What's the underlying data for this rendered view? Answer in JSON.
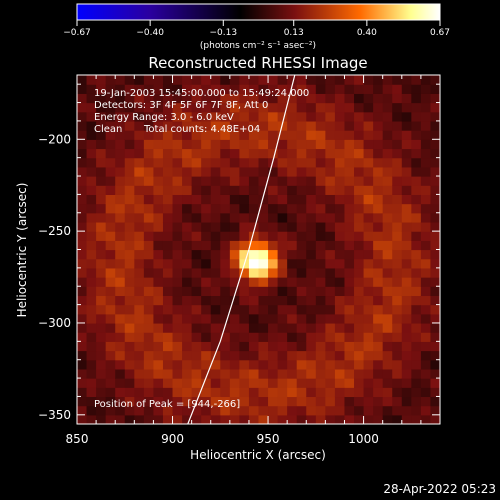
{
  "chart_data": {
    "type": "heatmap",
    "title": "Reconstructed RHESSI Image",
    "xlabel": "Heliocentric X (arcsec)",
    "ylabel": "Heliocentric Y (arcsec)",
    "xlim": [
      850,
      1040
    ],
    "ylim": [
      -355,
      -165
    ],
    "x_ticks": [
      850,
      900,
      950,
      1000
    ],
    "y_ticks": [
      -200,
      -250,
      -300,
      -350
    ],
    "colorbar": {
      "unit_label": "(photons cm⁻² s⁻¹ asec⁻²)",
      "range": [
        -0.67,
        0.67
      ],
      "tick_labels": [
        "−0.67",
        "−0.40",
        "−0.13",
        "0.13",
        "0.40",
        "0.67"
      ],
      "colormap": [
        "#0000ff",
        "#2a00a0",
        "#000000",
        "#7a1010",
        "#ff6a00",
        "#ffff90",
        "#ffffff"
      ]
    },
    "annotations": {
      "time_range": "19-Jan-2003 15:45:00.000 to 15:49:24.000",
      "detectors": "Detectors: 3F 4F 5F 6F 7F 8F, Att 0",
      "energy_range": "Energy Range: 3.0 - 6.0 keV",
      "clean": "Clean",
      "total_counts": "Total counts: 4.48E+04",
      "peak_position": "Position of Peak = [944,-266]"
    },
    "peak": {
      "x": 944,
      "y": -266,
      "value": 0.67
    },
    "ring": {
      "center_x": 944,
      "center_y": -266,
      "radius_arcsec": 72,
      "level": 0.15
    },
    "limb": [
      [
        908,
        -355
      ],
      [
        925,
        -310
      ],
      [
        940,
        -260
      ],
      [
        953,
        -210
      ],
      [
        964,
        -165
      ]
    ]
  },
  "footer": {
    "timestamp": "28-Apr-2022 05:23"
  }
}
